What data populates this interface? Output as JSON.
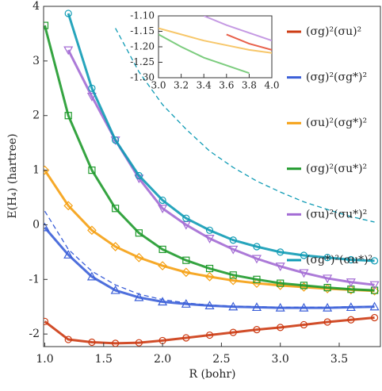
{
  "chart_data": [
    {
      "type": "line",
      "xlabel": "R (bohr)",
      "ylabel": "E(H₄) (hartree)",
      "x": [
        1.0,
        1.2,
        1.4,
        1.6,
        1.8,
        2.0,
        2.2,
        2.4,
        2.6,
        2.8,
        3.0,
        3.2,
        3.4,
        3.6,
        3.8
      ],
      "xlim": [
        0.99,
        3.85
      ],
      "ylim": [
        -2.23,
        4
      ],
      "xticks": [
        {
          "value": 1,
          "label": "1.0"
        },
        1.5,
        {
          "value": 2,
          "label": "2.0"
        },
        2.5,
        {
          "value": 3,
          "label": "3.0"
        },
        3.5
      ],
      "yticks": [
        -2,
        -1,
        0,
        1,
        2,
        3,
        4
      ],
      "series": [
        {
          "name": "(σg)²(σu)²",
          "color": "#cc3a12",
          "marker": "circle",
          "values": [
            -1.77,
            -2.1,
            -2.15,
            -2.17,
            -2.16,
            -2.12,
            -2.07,
            -2.02,
            -1.97,
            -1.92,
            -1.88,
            -1.83,
            -1.78,
            -1.74,
            -1.7
          ]
        },
        {
          "name": "(σg)²(σg*)²",
          "color": "#3b5fd8",
          "marker": "triangle-up",
          "values": [
            -0.05,
            -0.55,
            -0.95,
            -1.2,
            -1.33,
            -1.41,
            -1.45,
            -1.48,
            -1.5,
            -1.51,
            -1.52,
            -1.52,
            -1.52,
            -1.51,
            -1.5
          ],
          "dashed_values": [
            0.25,
            -0.45,
            -0.85,
            -1.1,
            -1.27,
            -1.37,
            -1.43,
            -1.47,
            -1.49,
            -1.5,
            -1.51,
            -1.51,
            -1.51,
            -1.5,
            -1.5
          ]
        },
        {
          "name": "(σu)²(σg*)²",
          "color": "#f5a012",
          "marker": "diamond",
          "values": [
            1.0,
            0.35,
            -0.1,
            -0.4,
            -0.6,
            -0.75,
            -0.87,
            -0.95,
            -1.02,
            -1.07,
            -1.11,
            -1.14,
            -1.17,
            -1.19,
            -1.21
          ]
        },
        {
          "name": "(σg)²(σu*)²",
          "color": "#1f9a2c",
          "marker": "square",
          "values": [
            3.65,
            2.0,
            1.0,
            0.3,
            -0.15,
            -0.45,
            -0.65,
            -0.8,
            -0.92,
            -1.0,
            -1.07,
            -1.11,
            -1.15,
            -1.18,
            -1.2
          ]
        },
        {
          "name": "(σu)²(σu*)²",
          "color": "#a36bd4",
          "marker": "triangle-down",
          "values": [
            null,
            3.2,
            2.35,
            1.55,
            0.85,
            0.3,
            0.0,
            -0.25,
            -0.45,
            -0.62,
            -0.76,
            -0.88,
            -0.98,
            -1.05,
            -1.1
          ]
        },
        {
          "name": "(σg*)²(σu*)²",
          "color": "#0f9bb5",
          "marker": "circle",
          "values": [
            null,
            3.87,
            2.5,
            1.55,
            0.9,
            0.45,
            0.12,
            -0.1,
            -0.28,
            -0.4,
            -0.5,
            -0.56,
            -0.6,
            -0.64,
            -0.66
          ],
          "dashed_values": [
            null,
            null,
            null,
            3.6,
            2.8,
            2.2,
            1.75,
            1.35,
            1.05,
            0.8,
            0.6,
            0.42,
            0.28,
            0.15,
            0.05
          ]
        }
      ]
    },
    {
      "type": "line",
      "x": [
        3.0,
        3.2,
        3.4,
        3.6,
        3.8,
        4.0
      ],
      "xlim": [
        3,
        4
      ],
      "ylim": [
        -1.3,
        -1.1
      ],
      "xticks": [
        {
          "value": 3,
          "label": "3.0"
        },
        3.2,
        3.4,
        3.6,
        3.8,
        {
          "value": 4,
          "label": "4.0"
        }
      ],
      "yticks": [
        {
          "value": -1.3,
          "label": "-1.30"
        },
        -1.25,
        {
          "value": -1.2,
          "label": "-1.20"
        },
        -1.15,
        {
          "value": -1.1,
          "label": "-1.10"
        }
      ],
      "series": [
        {
          "color": "#e8604a",
          "values": [
            null,
            null,
            null,
            -1.16,
            -1.19,
            -1.21
          ]
        },
        {
          "color": "#f7c76a",
          "values": [
            -1.14,
            -1.16,
            -1.18,
            -1.195,
            -1.21,
            -1.22
          ]
        },
        {
          "color": "#7ccc7e",
          "values": [
            -1.16,
            -1.2,
            -1.235,
            -1.26,
            -1.285,
            null
          ]
        },
        {
          "color": "#c59ae3",
          "values": [
            null,
            null,
            -1.1,
            -1.13,
            -1.155,
            -1.18
          ]
        }
      ]
    }
  ]
}
